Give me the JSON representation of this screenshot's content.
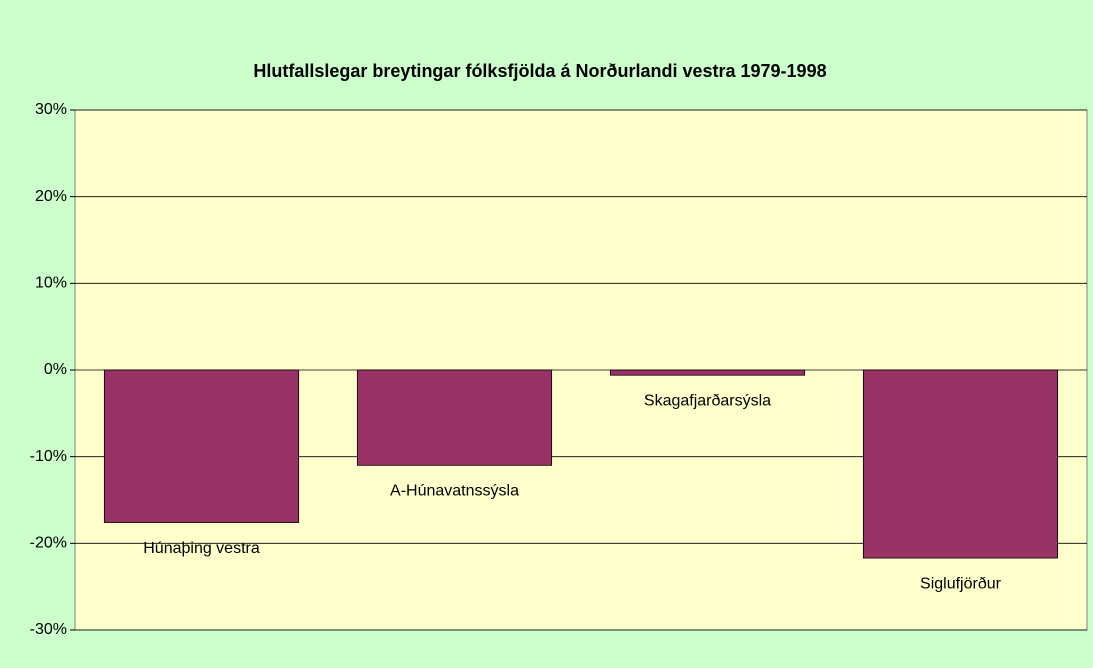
{
  "chart_data": {
    "type": "bar",
    "title": "Hlutfallslegar breytingar fólksfjölda á Norðurlandi vestra 1979-1998",
    "categories": [
      "Húnaþing vestra",
      "A-Húnavatnssýsla",
      "Skagafjarðarsýsla",
      "Siglufjörður"
    ],
    "values": [
      -17.6,
      -11.0,
      -0.6,
      -21.7
    ],
    "color": "#993366",
    "ylim": [
      -30,
      30
    ],
    "yticks": [
      {
        "value": -30,
        "label": "-30%"
      },
      {
        "value": -20,
        "label": "-20%"
      },
      {
        "value": -10,
        "label": "-10%"
      },
      {
        "value": 0,
        "label": "0%"
      },
      {
        "value": 10,
        "label": "10%"
      },
      {
        "value": 20,
        "label": "20%"
      },
      {
        "value": 30,
        "label": "30%"
      }
    ],
    "grid": true
  }
}
